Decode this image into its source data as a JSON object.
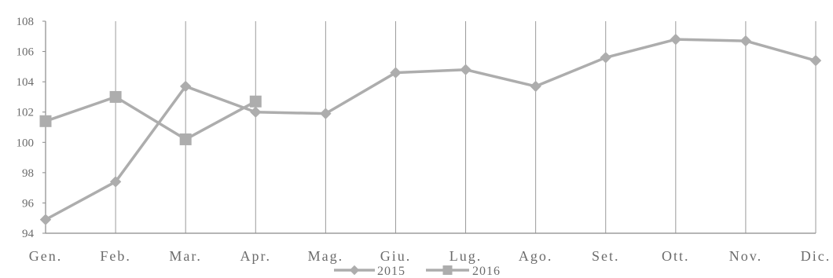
{
  "chart_data": {
    "type": "line",
    "title": "",
    "xlabel": "",
    "ylabel": "",
    "categories": [
      "Gen.",
      "Feb.",
      "Mar.",
      "Apr.",
      "Mag.",
      "Giu.",
      "Lug.",
      "Ago.",
      "Set.",
      "Ott.",
      "Nov.",
      "Dic."
    ],
    "y_ticks": [
      94,
      96,
      98,
      100,
      102,
      104,
      106,
      108
    ],
    "ylim": [
      94,
      108
    ],
    "grid": "vertical",
    "legend_position": "bottom",
    "series": [
      {
        "name": "2015",
        "marker": "diamond",
        "color": "#adadad",
        "values": [
          94.9,
          97.4,
          103.7,
          102.0,
          101.9,
          104.6,
          104.8,
          103.7,
          105.6,
          106.8,
          106.7,
          105.4
        ]
      },
      {
        "name": "2016",
        "marker": "square",
        "color": "#adadad",
        "values": [
          101.4,
          103.0,
          100.2,
          102.7,
          null,
          null,
          null,
          null,
          null,
          null,
          null,
          null
        ]
      }
    ]
  }
}
